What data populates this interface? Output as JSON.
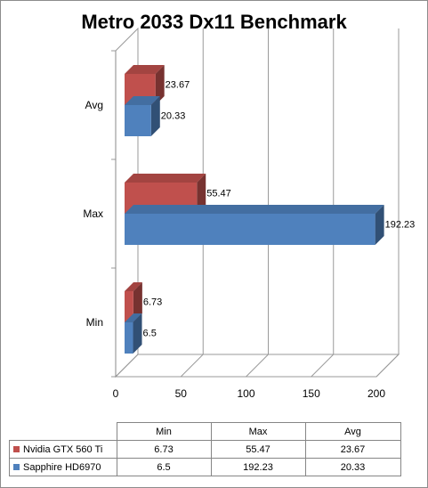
{
  "chart_data": {
    "type": "bar",
    "orientation": "horizontal",
    "style": "3d",
    "title": "Metro 2033 Dx11 Benchmark",
    "categories": [
      "Min",
      "Max",
      "Avg"
    ],
    "series": [
      {
        "name": "Nvidia GTX 560 Ti",
        "values": [
          6.73,
          55.47,
          23.67
        ],
        "color": "#c0504d"
      },
      {
        "name": "Sapphire HD6970",
        "values": [
          6.5,
          192.23,
          20.33
        ],
        "color": "#4f81bd"
      }
    ],
    "xlim": [
      0,
      200
    ],
    "xticks": [
      0,
      50,
      100,
      150,
      200
    ],
    "grid": true,
    "data_labels": true,
    "legend": "data-table-below"
  },
  "table": {
    "headers": [
      "Min",
      "Max",
      "Avg"
    ],
    "rows": [
      {
        "label": "Nvidia GTX 560 Ti",
        "values": [
          "6.73",
          "55.47",
          "23.67"
        ]
      },
      {
        "label": "Sapphire HD6970",
        "values": [
          "6.5",
          "192.23",
          "20.33"
        ]
      }
    ]
  }
}
